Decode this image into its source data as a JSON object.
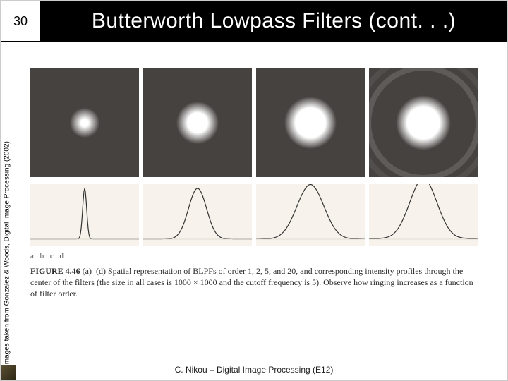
{
  "slide_number": "30",
  "title": "Butterworth Lowpass Filters (cont. . .)",
  "side_credit": "Images taken from Gonzalez & Woods, Digital Image Processing (2002)",
  "panels": {
    "bg_color": "#464240",
    "spots": [
      {
        "radius": 6,
        "halo": 0.0,
        "rings": 0
      },
      {
        "radius": 16,
        "halo": 0.08,
        "rings": 0
      },
      {
        "radius": 24,
        "halo": 0.2,
        "rings": 1
      },
      {
        "radius": 26,
        "halo": 0.28,
        "rings": 3
      }
    ]
  },
  "profiles": {
    "stroke": "#333333",
    "bg": "#f7f3ec",
    "curves": [
      {
        "type": "sharp",
        "peak_w": 4,
        "ringing": 0.0
      },
      {
        "type": "bell",
        "peak_w": 18,
        "ringing": 0.0
      },
      {
        "type": "bell",
        "peak_w": 28,
        "ringing": 0.08
      },
      {
        "type": "bell",
        "peak_w": 30,
        "ringing": 0.22
      }
    ]
  },
  "caption": {
    "labels": "a  b  c  d",
    "fig_label": "FIGURE 4.46",
    "text": "(a)–(d) Spatial representation of BLPFs of order 1, 2, 5, and 20, and corresponding intensity profiles through the center of the filters (the size in all cases is 1000 × 1000 and the cutoff frequency is 5). Observe how ringing increases as a function of filter order."
  },
  "footer": "C. Nikou – Digital Image Processing (E12)"
}
